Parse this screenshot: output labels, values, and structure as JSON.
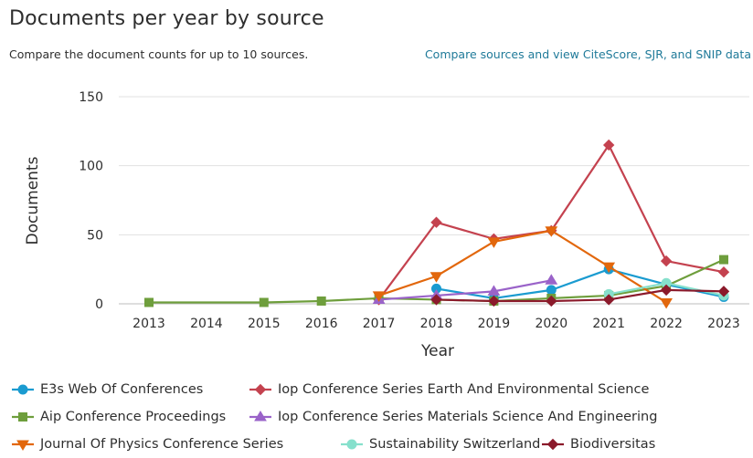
{
  "header": {
    "title": "Documents per year by source",
    "subtitle": "Compare the document counts for up to 10 sources.",
    "link_label": "Compare sources and view CiteScore, SJR, and SNIP data"
  },
  "chart_data": {
    "type": "line",
    "xlabel": "Year",
    "ylabel": "Documents",
    "x": [
      2013,
      2014,
      2015,
      2016,
      2017,
      2018,
      2019,
      2020,
      2021,
      2022,
      2023
    ],
    "x_ticks": [
      "2013",
      "2014",
      "2015",
      "2016",
      "2017",
      "2018",
      "2019",
      "2020",
      "2021",
      "2022",
      "2023"
    ],
    "y_ticks": [
      "0",
      "50",
      "100",
      "150"
    ],
    "ylim": [
      0,
      150
    ],
    "xlim": [
      2013,
      2023
    ],
    "grid": "horizontal",
    "legend_position": "bottom",
    "series": [
      {
        "name": "E3s Web Of Conferences",
        "color": "#1a9bd0",
        "marker": "circle",
        "points": [
          [
            2018,
            11
          ],
          [
            2019,
            4
          ],
          [
            2020,
            10
          ],
          [
            2021,
            25
          ],
          [
            2022,
            14
          ],
          [
            2023,
            5
          ]
        ]
      },
      {
        "name": "Iop Conference Series Earth And Environmental Science",
        "color": "#c4424f",
        "marker": "diamond",
        "points": [
          [
            2017,
            3
          ],
          [
            2018,
            59
          ],
          [
            2019,
            47
          ],
          [
            2020,
            53
          ],
          [
            2021,
            115
          ],
          [
            2022,
            31
          ],
          [
            2023,
            23
          ]
        ]
      },
      {
        "name": "Aip Conference Proceedings",
        "color": "#6e9e3c",
        "marker": "square",
        "points": [
          [
            2013,
            1
          ],
          [
            2015,
            1
          ],
          [
            2016,
            2
          ],
          [
            2017,
            4
          ],
          [
            2018,
            3
          ],
          [
            2019,
            2
          ],
          [
            2020,
            4
          ],
          [
            2021,
            6
          ],
          [
            2022,
            13
          ],
          [
            2023,
            32
          ]
        ]
      },
      {
        "name": "Iop Conference Series Materials Science And Engineering",
        "color": "#9a63c9",
        "marker": "triangle",
        "points": [
          [
            2017,
            3
          ],
          [
            2018,
            6
          ],
          [
            2019,
            9
          ],
          [
            2020,
            17
          ]
        ]
      },
      {
        "name": "Journal Of Physics Conference Series",
        "color": "#e2670c",
        "marker": "triangle-down",
        "points": [
          [
            2017,
            6
          ],
          [
            2018,
            20
          ],
          [
            2019,
            45
          ],
          [
            2020,
            53
          ],
          [
            2021,
            27
          ],
          [
            2022,
            1
          ]
        ]
      },
      {
        "name": "Sustainability Switzerland",
        "color": "#86e0cc",
        "marker": "circle",
        "points": [
          [
            2021,
            7
          ],
          [
            2022,
            15
          ],
          [
            2023,
            6
          ]
        ]
      },
      {
        "name": "Biodiversitas",
        "color": "#8b1a2b",
        "marker": "diamond",
        "points": [
          [
            2018,
            3
          ],
          [
            2019,
            2
          ],
          [
            2020,
            2
          ],
          [
            2021,
            3
          ],
          [
            2022,
            10
          ],
          [
            2023,
            9
          ]
        ]
      }
    ]
  }
}
